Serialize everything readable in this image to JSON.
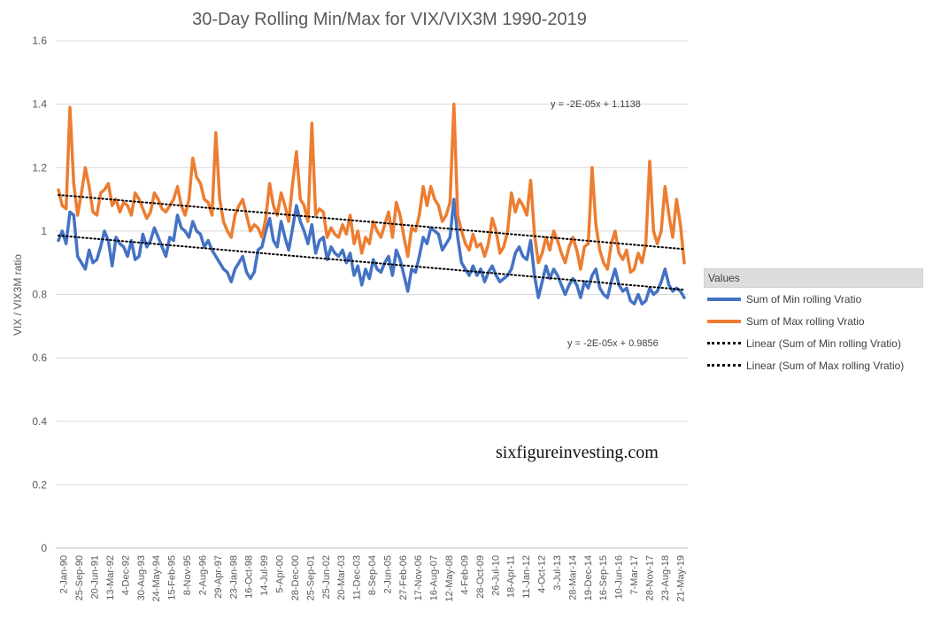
{
  "chart_data": {
    "type": "line",
    "title": "30-Day Rolling Min/Max for VIX/VIX3M 1990-2019",
    "ylabel": "VIX / VIX3M ratio",
    "xlabel": "",
    "ylim": [
      0,
      1.6
    ],
    "yticks": [
      "0",
      "0.2",
      "0.4",
      "0.6",
      "0.8",
      "1",
      "1.2",
      "1.4",
      "1.6"
    ],
    "xticks": [
      "2-Jan-90",
      "25-Sep-90",
      "20-Jun-91",
      "13-Mar-92",
      "4-Dec-92",
      "30-Aug-93",
      "24-May-94",
      "15-Feb-95",
      "8-Nov-95",
      "2-Aug-96",
      "29-Apr-97",
      "23-Jan-98",
      "16-Oct-98",
      "14-Jul-99",
      "5-Apr-00",
      "28-Dec-00",
      "25-Sep-01",
      "25-Jun-02",
      "20-Mar-03",
      "11-Dec-03",
      "8-Sep-04",
      "2-Jun-05",
      "27-Feb-06",
      "17-Nov-06",
      "16-Aug-07",
      "12-May-08",
      "4-Feb-09",
      "28-Oct-09",
      "26-Jul-10",
      "18-Apr-11",
      "11-Jan-12",
      "4-Oct-12",
      "3-Jul-13",
      "28-Mar-14",
      "19-Dec-14",
      "16-Sep-15",
      "10-Jun-16",
      "7-Mar-17",
      "28-Nov-17",
      "23-Aug-18",
      "21-May-19"
    ],
    "grid": true,
    "legend_position": "right",
    "series": [
      {
        "name": "Sum of Min rolling Vratio",
        "color": "#4472C4",
        "values": [
          0.97,
          1.0,
          0.96,
          1.06,
          1.05,
          0.92,
          0.9,
          0.88,
          0.94,
          0.9,
          0.91,
          0.95,
          1.0,
          0.97,
          0.89,
          0.98,
          0.96,
          0.95,
          0.92,
          0.97,
          0.91,
          0.92,
          0.99,
          0.95,
          0.97,
          1.01,
          0.98,
          0.95,
          0.92,
          0.98,
          0.97,
          1.05,
          1.01,
          1.0,
          0.98,
          1.03,
          1.0,
          0.99,
          0.95,
          0.97,
          0.94,
          0.92,
          0.9,
          0.88,
          0.87,
          0.84,
          0.88,
          0.9,
          0.92,
          0.87,
          0.85,
          0.87,
          0.94,
          0.95,
          1.0,
          1.04,
          0.97,
          0.95,
          1.03,
          0.98,
          0.94,
          1.01,
          1.08,
          1.03,
          1.0,
          0.96,
          1.02,
          0.93,
          0.97,
          0.98,
          0.91,
          0.95,
          0.93,
          0.92,
          0.94,
          0.9,
          0.93,
          0.86,
          0.89,
          0.83,
          0.88,
          0.85,
          0.91,
          0.88,
          0.87,
          0.9,
          0.92,
          0.86,
          0.94,
          0.91,
          0.86,
          0.81,
          0.88,
          0.87,
          0.92,
          0.98,
          0.96,
          1.01,
          1.0,
          0.99,
          0.94,
          0.96,
          0.98,
          1.1,
          0.98,
          0.9,
          0.88,
          0.86,
          0.89,
          0.86,
          0.88,
          0.84,
          0.87,
          0.89,
          0.86,
          0.84,
          0.85,
          0.86,
          0.88,
          0.93,
          0.95,
          0.92,
          0.91,
          0.97,
          0.86,
          0.79,
          0.84,
          0.89,
          0.85,
          0.88,
          0.86,
          0.83,
          0.8,
          0.83,
          0.85,
          0.83,
          0.79,
          0.84,
          0.82,
          0.86,
          0.88,
          0.82,
          0.8,
          0.79,
          0.84,
          0.88,
          0.83,
          0.81,
          0.82,
          0.78,
          0.77,
          0.8,
          0.77,
          0.78,
          0.82,
          0.8,
          0.81,
          0.84,
          0.88,
          0.83,
          0.81,
          0.82,
          0.81,
          0.79
        ]
      },
      {
        "name": "Sum of Max rolling Vratio",
        "color": "#ED7D31",
        "values": [
          1.13,
          1.08,
          1.07,
          1.39,
          1.15,
          1.05,
          1.12,
          1.2,
          1.14,
          1.06,
          1.05,
          1.12,
          1.13,
          1.15,
          1.08,
          1.1,
          1.06,
          1.09,
          1.08,
          1.05,
          1.12,
          1.1,
          1.07,
          1.04,
          1.06,
          1.12,
          1.1,
          1.07,
          1.06,
          1.08,
          1.1,
          1.14,
          1.08,
          1.05,
          1.1,
          1.23,
          1.17,
          1.15,
          1.1,
          1.09,
          1.05,
          1.31,
          1.1,
          1.03,
          1.0,
          0.98,
          1.05,
          1.08,
          1.1,
          1.05,
          1.0,
          1.02,
          1.01,
          0.98,
          1.04,
          1.15,
          1.08,
          1.05,
          1.12,
          1.08,
          1.03,
          1.15,
          1.25,
          1.1,
          1.08,
          1.03,
          1.34,
          1.05,
          1.07,
          1.06,
          0.98,
          1.01,
          0.99,
          0.98,
          1.02,
          0.99,
          1.05,
          0.96,
          1.0,
          0.93,
          0.98,
          0.96,
          1.03,
          1.0,
          0.98,
          1.02,
          1.06,
          0.98,
          1.09,
          1.05,
          0.98,
          0.92,
          1.01,
          1.0,
          1.05,
          1.14,
          1.08,
          1.14,
          1.1,
          1.08,
          1.03,
          1.05,
          1.09,
          1.4,
          1.05,
          1.0,
          0.96,
          0.94,
          0.99,
          0.95,
          0.96,
          0.92,
          0.96,
          1.04,
          1.0,
          0.93,
          0.95,
          1.0,
          1.12,
          1.06,
          1.1,
          1.08,
          1.05,
          1.16,
          0.99,
          0.9,
          0.93,
          0.98,
          0.94,
          1.0,
          0.97,
          0.93,
          0.9,
          0.95,
          0.98,
          0.94,
          0.88,
          0.95,
          0.96,
          1.2,
          1.02,
          0.94,
          0.9,
          0.88,
          0.96,
          1.0,
          0.93,
          0.91,
          0.94,
          0.87,
          0.88,
          0.93,
          0.9,
          0.96,
          1.22,
          1.0,
          0.96,
          1.0,
          1.14,
          1.05,
          0.98,
          1.1,
          1.02,
          0.9
        ]
      },
      {
        "name": "Linear (Sum of Min rolling Vratio)",
        "color": "#000000",
        "style": "dotted",
        "values": [
          0.9856,
          0.8148
        ]
      },
      {
        "name": "Linear (Sum of Max rolling Vratio)",
        "color": "#000000",
        "style": "dotted",
        "values": [
          1.1138,
          0.943
        ]
      }
    ],
    "annotations": [
      "y = -2E-05x + 1.1138",
      "y = -2E-05x + 0.9856",
      "sixfigureinvesting.com"
    ],
    "legend_title": "Values"
  }
}
